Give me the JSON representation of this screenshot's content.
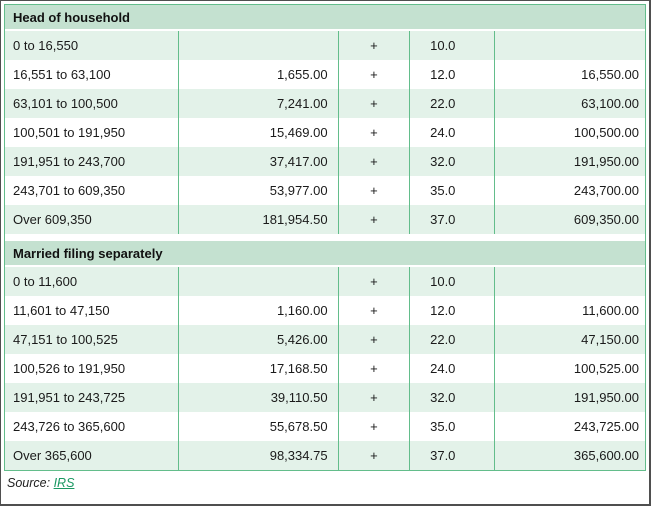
{
  "chart_data": {
    "type": "table",
    "sections": [
      {
        "header": "Head of household",
        "rows": [
          {
            "range": "0 to 16,550",
            "base": "",
            "op": "+",
            "rate": "10.0",
            "over": ""
          },
          {
            "range": "16,551 to 63,100",
            "base": "1,655.00",
            "op": "+",
            "rate": "12.0",
            "over": "16,550.00"
          },
          {
            "range": "63,101 to 100,500",
            "base": "7,241.00",
            "op": "+",
            "rate": "22.0",
            "over": "63,100.00"
          },
          {
            "range": "100,501 to 191,950",
            "base": "15,469.00",
            "op": "+",
            "rate": "24.0",
            "over": "100,500.00"
          },
          {
            "range": "191,951 to 243,700",
            "base": "37,417.00",
            "op": "+",
            "rate": "32.0",
            "over": "191,950.00"
          },
          {
            "range": "243,701 to 609,350",
            "base": "53,977.00",
            "op": "+",
            "rate": "35.0",
            "over": "243,700.00"
          },
          {
            "range": "Over 609,350",
            "base": "181,954.50",
            "op": "+",
            "rate": "37.0",
            "over": "609,350.00"
          }
        ]
      },
      {
        "header": "Married filing separately",
        "rows": [
          {
            "range": "0 to 11,600",
            "base": "",
            "op": "+",
            "rate": "10.0",
            "over": ""
          },
          {
            "range": "11,601 to 47,150",
            "base": "1,160.00",
            "op": "+",
            "rate": "12.0",
            "over": "11,600.00"
          },
          {
            "range": "47,151 to 100,525",
            "base": "5,426.00",
            "op": "+",
            "rate": "22.0",
            "over": "47,150.00"
          },
          {
            "range": "100,526 to 191,950",
            "base": "17,168.50",
            "op": "+",
            "rate": "24.0",
            "over": "100,525.00"
          },
          {
            "range": "191,951 to 243,725",
            "base": "39,110.50",
            "op": "+",
            "rate": "32.0",
            "over": "191,950.00"
          },
          {
            "range": "243,726 to 365,600",
            "base": "55,678.50",
            "op": "+",
            "rate": "35.0",
            "over": "243,725.00"
          },
          {
            "range": "Over 365,600",
            "base": "98,334.75",
            "op": "+",
            "rate": "37.0",
            "over": "365,600.00"
          }
        ]
      }
    ],
    "source_label": "Source:",
    "source_link": "IRS"
  },
  "colors": {
    "grid_green": "#63bd8b",
    "section_header_bg": "#c4e1d0",
    "row_stripe_green": "#e3f2e9",
    "link_green": "#1a9862",
    "frame_gray": "#4f4f4f"
  }
}
